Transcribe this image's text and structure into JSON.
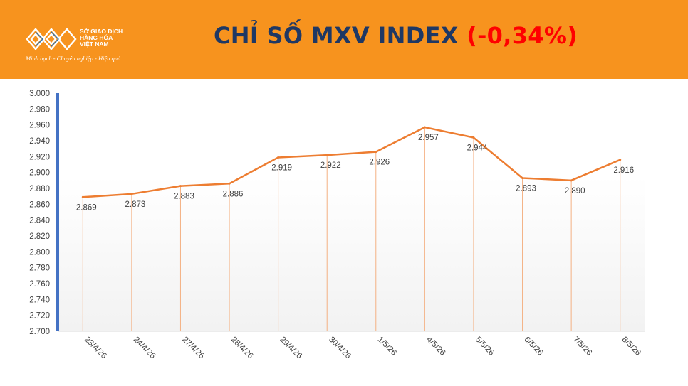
{
  "header": {
    "logo_name": "SỞ GIAO DỊCH\nHÀNG HÓA\nVIỆT NAM",
    "logo_slogan": "Minh bạch - Chuyên nghiệp - Hiệu quả",
    "title_main": "CHỈ SỐ MXV INDEX",
    "title_change": "(-0,34%)"
  },
  "colors": {
    "header_bg": "#f7931e",
    "title": "#1f3864",
    "change": "#ff0000",
    "line": "#ed7d31",
    "axis": "#4472c4"
  },
  "chart_data": {
    "type": "line",
    "title": "",
    "xlabel": "",
    "ylabel": "",
    "ylim": [
      2700,
      3000
    ],
    "y_ticks": [
      "2.700",
      "2.720",
      "2.740",
      "2.760",
      "2.780",
      "2.800",
      "2.820",
      "2.840",
      "2.860",
      "2.880",
      "2.900",
      "2.920",
      "2.940",
      "2.960",
      "2.980",
      "3.000"
    ],
    "categories": [
      "23/4/26",
      "24/4/26",
      "27/4/26",
      "28/4/26",
      "29/4/26",
      "30/4/26",
      "1/5/26",
      "4/5/26",
      "5/5/26",
      "6/5/26",
      "7/5/26",
      "8/5/26"
    ],
    "values": [
      2869,
      2873,
      2883,
      2886,
      2919,
      2922,
      2926,
      2957,
      2944,
      2893,
      2890,
      2916
    ],
    "data_labels": [
      "2.869",
      "2.873",
      "2.883",
      "2.886",
      "2.919",
      "2.922",
      "2.926",
      "2.957",
      "2.944",
      "2.893",
      "2.890",
      "2.916"
    ],
    "grid": false,
    "drop_lines": true
  }
}
